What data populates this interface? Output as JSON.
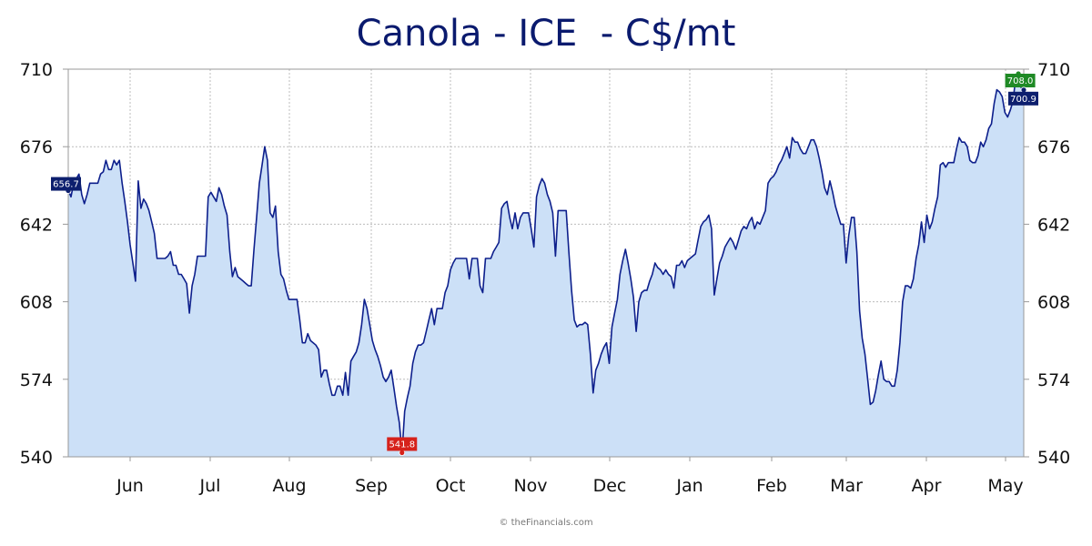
{
  "chart_data": {
    "type": "area",
    "title": "Canola - ICE  - C$/mt",
    "xlabel": "",
    "ylabel": "",
    "ylim": [
      540,
      710
    ],
    "y_ticks": [
      540,
      574,
      608,
      642,
      676,
      710
    ],
    "x_tick_labels": [
      "Jun",
      "Jul",
      "Aug",
      "Sep",
      "Oct",
      "Nov",
      "Dec",
      "Jan",
      "Feb",
      "Mar",
      "Apr",
      "May"
    ],
    "grid": true,
    "x_index_range": [
      0,
      248
    ],
    "series": [
      {
        "values": [
          657,
          654,
          660,
          662,
          664,
          655,
          651,
          655,
          660,
          660,
          660,
          660,
          664,
          665,
          670,
          666,
          666,
          670,
          668,
          670,
          660,
          652,
          643,
          633,
          625,
          617,
          661,
          649,
          653,
          651,
          648,
          643,
          638,
          627,
          627,
          627,
          627,
          628,
          630,
          624,
          624,
          620,
          620,
          618,
          616,
          603,
          615,
          620,
          628,
          628,
          628,
          628,
          654,
          656,
          654,
          652,
          658,
          655,
          650,
          646,
          630,
          619,
          623,
          619,
          618,
          617,
          616,
          615,
          615,
          631,
          645,
          660,
          668,
          676,
          670,
          647,
          645,
          650,
          630,
          620,
          618,
          613,
          609,
          609,
          609,
          609,
          600,
          590,
          590,
          594,
          591,
          590,
          589,
          587,
          575,
          578,
          578,
          572,
          567,
          567,
          571,
          571,
          567,
          577,
          567,
          582,
          584,
          586,
          590,
          598,
          609,
          605,
          598,
          591,
          587,
          584,
          580,
          575,
          573,
          575,
          578,
          570,
          562,
          555,
          541.8,
          560,
          566,
          571,
          581,
          586,
          589,
          589,
          590,
          595,
          600,
          605,
          598,
          605,
          605,
          605,
          612,
          615,
          622,
          625,
          627,
          627,
          627,
          627,
          627,
          618,
          627,
          627,
          627,
          615,
          612,
          627,
          627,
          627,
          630,
          632,
          634,
          649,
          651,
          652,
          645,
          640,
          647,
          640,
          645,
          647,
          647,
          647,
          640,
          632,
          654,
          659,
          662,
          660,
          655,
          652,
          647,
          628,
          648,
          648,
          648,
          648,
          630,
          613,
          600,
          597,
          598,
          598,
          599,
          598,
          585,
          568,
          578,
          581,
          585,
          588,
          590,
          581,
          597,
          603,
          609,
          620,
          626,
          631,
          625,
          618,
          610,
          595,
          608,
          612,
          613,
          613,
          617,
          620,
          625,
          623,
          622,
          620,
          622,
          620,
          619,
          614,
          624,
          624,
          626,
          623,
          626,
          627,
          628,
          629,
          635,
          641,
          643,
          644,
          646,
          640,
          611,
          618,
          625,
          628,
          632,
          634,
          636,
          634,
          631,
          635,
          639,
          641,
          640,
          643,
          645,
          640,
          643,
          642,
          645,
          648,
          660,
          662,
          663,
          665,
          668,
          670,
          673,
          676,
          671,
          680,
          678,
          678,
          675,
          673,
          673,
          676,
          679,
          679,
          676,
          671,
          665,
          658,
          655,
          661,
          656,
          650,
          646,
          642,
          642,
          625,
          637,
          645,
          645,
          630,
          604,
          592,
          585,
          574,
          563,
          564,
          569,
          576,
          582,
          574,
          573,
          573,
          571,
          571,
          578,
          590,
          608,
          615,
          615,
          614,
          618,
          627,
          633,
          643,
          634,
          646,
          640,
          643,
          649,
          654,
          668,
          669,
          667,
          669,
          669,
          669,
          675,
          680,
          678,
          678,
          676,
          670,
          669,
          669,
          672,
          678,
          676,
          679,
          684,
          686,
          695,
          701,
          700,
          698,
          691,
          689,
          692,
          696,
          706,
          708,
          702,
          700.9
        ]
      }
    ],
    "annotations": {
      "first": {
        "label": "656.7",
        "value": 656.7
      },
      "low": {
        "label": "541.8",
        "value": 541.8
      },
      "high": {
        "label": "708.0",
        "value": 708.0
      },
      "last": {
        "label": "700.9",
        "value": 700.9
      }
    },
    "colors": {
      "line": "#0d1f8c",
      "fill": "#cce0f7",
      "grid": "#bcbcbc",
      "axis": "#999999",
      "low_flag": "#d6221b",
      "high_flag": "#1f8a25",
      "neutral_flag": "#0d1f6e"
    }
  },
  "credit": "© theFinancials.com"
}
